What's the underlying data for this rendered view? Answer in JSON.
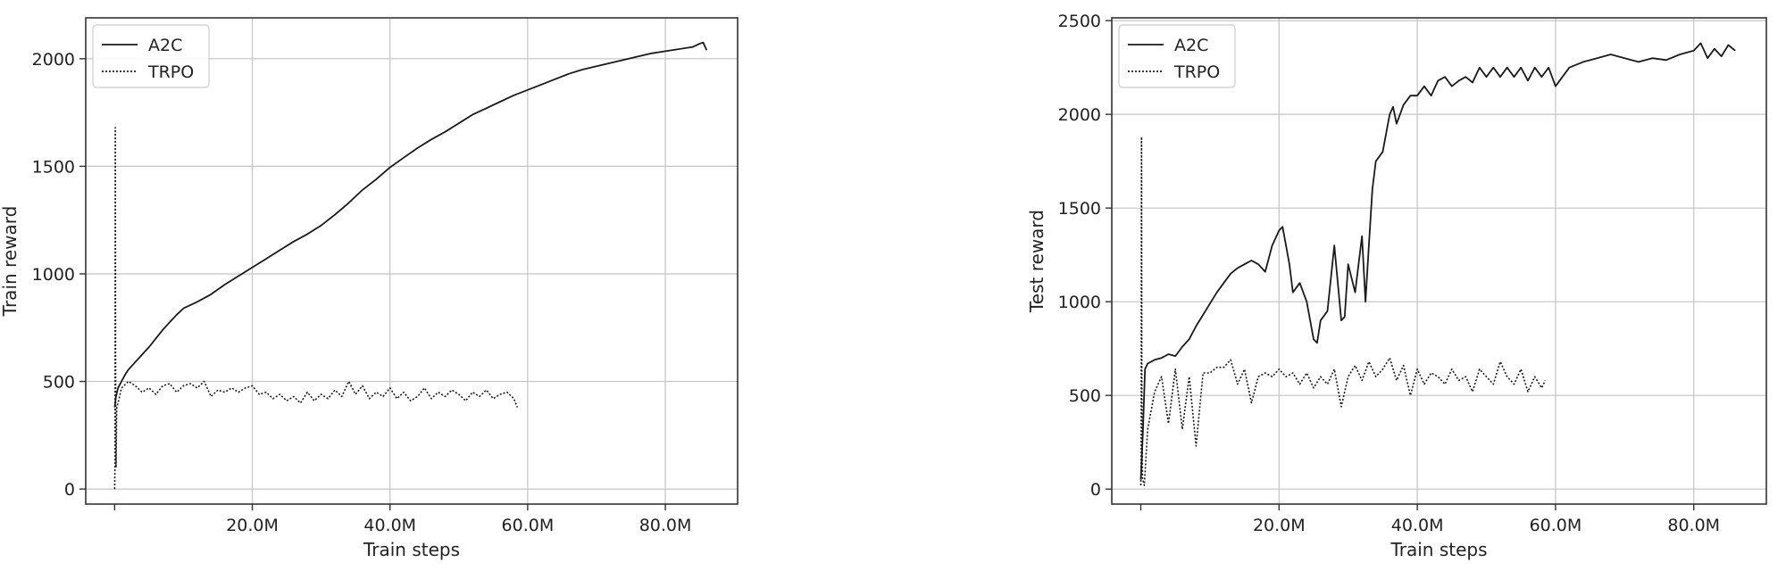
{
  "chart_data": [
    {
      "type": "line",
      "xlabel": "Train steps",
      "ylabel": "Train reward",
      "x_ticks": [
        20,
        40,
        60,
        80
      ],
      "x_tick_labels": [
        "20.0M",
        "40.0M",
        "60.0M",
        "80.0M"
      ],
      "y_ticks": [
        0,
        500,
        1000,
        1500,
        2000
      ],
      "y_tick_labels": [
        "0",
        "500",
        "1000",
        "1500",
        "2000"
      ],
      "xlim": [
        -4.2,
        90.5
      ],
      "ylim": [
        -70,
        2190
      ],
      "grid": true,
      "legend_position": "top-left",
      "series": [
        {
          "name": "A2C",
          "style": "solid",
          "color": "#1a1a1a",
          "x": [
            0,
            0.2,
            0.5,
            1,
            1.5,
            2,
            3,
            4,
            5,
            6,
            7,
            8,
            9,
            10,
            12,
            14,
            16,
            18,
            20,
            22,
            24,
            26,
            28,
            30,
            32,
            34,
            36,
            38,
            40,
            42,
            44,
            46,
            48,
            50,
            52,
            54,
            56,
            58,
            60,
            62,
            64,
            66,
            68,
            70,
            72,
            74,
            76,
            78,
            80,
            82,
            84,
            85,
            85.5,
            86
          ],
          "y": [
            380,
            430,
            470,
            500,
            530,
            555,
            590,
            625,
            660,
            700,
            740,
            775,
            810,
            840,
            870,
            905,
            950,
            990,
            1030,
            1070,
            1110,
            1150,
            1185,
            1225,
            1275,
            1330,
            1390,
            1440,
            1495,
            1540,
            1585,
            1625,
            1660,
            1700,
            1740,
            1770,
            1800,
            1830,
            1855,
            1880,
            1905,
            1930,
            1950,
            1965,
            1980,
            1995,
            2010,
            2025,
            2035,
            2045,
            2055,
            2070,
            2075,
            2040
          ]
        },
        {
          "name": "TRPO",
          "style": "dotted",
          "color": "#1a1a1a",
          "x": [
            0,
            0.05,
            0.1,
            0.15,
            0.2,
            0.3,
            0.5,
            1,
            2,
            3,
            4,
            5,
            6,
            7,
            8,
            9,
            10,
            11,
            12,
            13,
            14,
            15,
            16,
            17,
            18,
            19,
            20,
            21,
            22,
            23,
            24,
            25,
            26,
            27,
            28,
            29,
            30,
            31,
            32,
            33,
            34,
            35,
            36,
            37,
            38,
            39,
            40,
            41,
            42,
            43,
            44,
            45,
            46,
            47,
            48,
            49,
            50,
            51,
            52,
            53,
            54,
            55,
            56,
            57,
            58,
            58.5
          ],
          "y": [
            0,
            120,
            1680,
            450,
            100,
            380,
            400,
            470,
            500,
            480,
            450,
            470,
            440,
            480,
            490,
            450,
            480,
            490,
            470,
            500,
            430,
            460,
            450,
            470,
            450,
            470,
            480,
            440,
            450,
            420,
            440,
            410,
            430,
            400,
            450,
            410,
            440,
            420,
            460,
            430,
            500,
            440,
            480,
            420,
            450,
            430,
            470,
            420,
            450,
            410,
            430,
            470,
            420,
            450,
            430,
            460,
            440,
            410,
            450,
            430,
            460,
            420,
            440,
            450,
            420,
            380
          ]
        }
      ]
    },
    {
      "type": "line",
      "xlabel": "Train steps",
      "ylabel": "Test reward",
      "x_ticks": [
        20,
        40,
        60,
        80
      ],
      "x_tick_labels": [
        "20.0M",
        "40.0M",
        "60.0M",
        "80.0M"
      ],
      "y_ticks": [
        0,
        500,
        1000,
        1500,
        2000,
        2500
      ],
      "y_tick_labels": [
        "0",
        "500",
        "1000",
        "1500",
        "2000",
        "2500"
      ],
      "xlim": [
        -4.2,
        90.5
      ],
      "ylim": [
        -80,
        2515
      ],
      "grid": true,
      "legend_position": "top-left",
      "series": [
        {
          "name": "A2C",
          "style": "solid",
          "color": "#1a1a1a",
          "x": [
            0,
            0.3,
            0.6,
            1,
            2,
            3,
            4,
            5,
            6,
            7,
            8,
            9,
            10,
            11,
            12,
            13,
            14,
            15,
            16,
            17,
            18,
            19,
            20,
            20.5,
            21,
            21.5,
            22,
            23,
            24,
            25,
            25.5,
            26,
            27,
            28,
            29,
            29.5,
            30,
            31,
            32,
            32.5,
            33,
            33.5,
            34,
            35,
            36,
            36.5,
            37,
            37.5,
            38,
            39,
            40,
            41,
            42,
            43,
            44,
            45,
            46,
            47,
            48,
            49,
            50,
            51,
            52,
            53,
            54,
            55,
            56,
            57,
            58,
            59,
            60,
            62,
            64,
            66,
            68,
            70,
            72,
            74,
            76,
            78,
            80,
            81,
            82,
            83,
            84,
            85,
            86
          ],
          "y": [
            50,
            300,
            640,
            670,
            690,
            700,
            720,
            710,
            760,
            800,
            870,
            930,
            990,
            1050,
            1100,
            1150,
            1180,
            1200,
            1220,
            1200,
            1160,
            1300,
            1380,
            1400,
            1300,
            1200,
            1050,
            1100,
            1000,
            800,
            780,
            900,
            950,
            1300,
            900,
            920,
            1200,
            1050,
            1350,
            1000,
            1300,
            1600,
            1750,
            1800,
            2000,
            2040,
            1950,
            2000,
            2050,
            2100,
            2100,
            2150,
            2100,
            2180,
            2200,
            2150,
            2180,
            2200,
            2170,
            2250,
            2200,
            2250,
            2200,
            2250,
            2200,
            2250,
            2180,
            2250,
            2200,
            2250,
            2150,
            2250,
            2280,
            2300,
            2320,
            2300,
            2280,
            2300,
            2290,
            2320,
            2340,
            2380,
            2300,
            2350,
            2310,
            2370,
            2340
          ]
        },
        {
          "name": "TRPO",
          "style": "dotted",
          "color": "#1a1a1a",
          "x": [
            0,
            0.05,
            0.1,
            0.15,
            0.25,
            0.5,
            1,
            2,
            3,
            4,
            5,
            6,
            7,
            8,
            9,
            10,
            11,
            12,
            13,
            14,
            15,
            16,
            17,
            18,
            19,
            20,
            21,
            22,
            23,
            24,
            25,
            26,
            27,
            28,
            29,
            30,
            31,
            32,
            33,
            34,
            35,
            36,
            37,
            38,
            39,
            40,
            41,
            42,
            43,
            44,
            45,
            46,
            47,
            48,
            49,
            50,
            51,
            52,
            53,
            54,
            55,
            56,
            57,
            58,
            58.5
          ],
          "y": [
            20,
            100,
            1880,
            500,
            60,
            20,
            320,
            520,
            600,
            350,
            640,
            320,
            600,
            230,
            620,
            620,
            650,
            650,
            690,
            560,
            640,
            460,
            600,
            620,
            600,
            640,
            600,
            620,
            560,
            620,
            540,
            600,
            560,
            640,
            440,
            600,
            660,
            580,
            680,
            600,
            640,
            700,
            580,
            660,
            500,
            640,
            560,
            620,
            600,
            560,
            640,
            580,
            600,
            520,
            640,
            600,
            560,
            680,
            600,
            560,
            640,
            520,
            600,
            540,
            580
          ]
        }
      ]
    }
  ],
  "legend": {
    "entries": [
      "A2C",
      "TRPO"
    ]
  }
}
